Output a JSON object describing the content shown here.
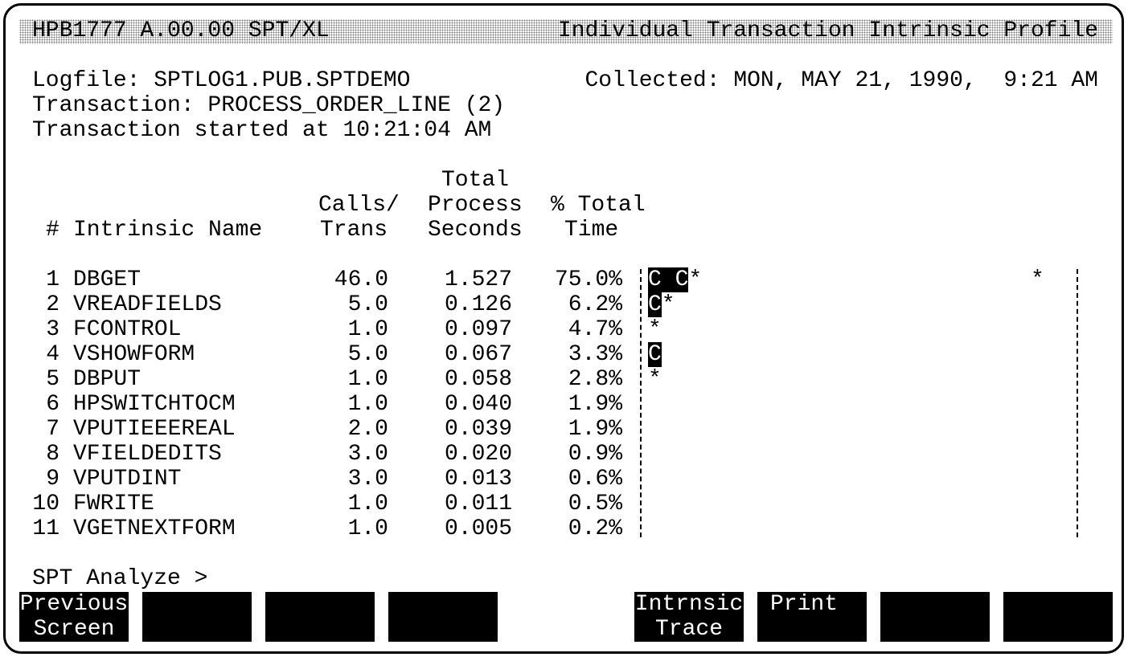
{
  "header": {
    "system": "HPB1777 A.00.00 SPT/XL",
    "title": "Individual Transaction Intrinsic Profile"
  },
  "info": {
    "logfile": "Logfile: SPTLOG1.PUB.SPTDEMO",
    "collected": "Collected: MON, MAY 21, 1990,  9:21 AM",
    "transaction": "Transaction: PROCESS_ORDER_LINE (2)",
    "started": "Transaction started at 10:21:04 AM"
  },
  "table": {
    "headers": {
      "number": "#",
      "name": "Intrinsic Name",
      "calls": [
        "Calls/",
        "Trans"
      ],
      "seconds": [
        "Total",
        "Process",
        "Seconds"
      ],
      "percent": [
        "% Total",
        "Time"
      ]
    },
    "rows": [
      [
        "1",
        "DBGET",
        "46.0",
        "1.527",
        "75.0%"
      ],
      [
        "2",
        "VREADFIELDS",
        "5.0",
        "0.126",
        "6.2%"
      ],
      [
        "3",
        "FCONTROL",
        "1.0",
        "0.097",
        "4.7%"
      ],
      [
        "4",
        "VSHOWFORM",
        "5.0",
        "0.067",
        "3.3%"
      ],
      [
        "5",
        "DBPUT",
        "1.0",
        "0.058",
        "2.8%"
      ],
      [
        "6",
        "HPSWITCHTOCM",
        "1.0",
        "0.040",
        "1.9%"
      ],
      [
        "7",
        "VPUTIEEEREAL",
        "2.0",
        "0.039",
        "1.9%"
      ],
      [
        "8",
        "VFIELDEDITS",
        "3.0",
        "0.020",
        "0.9%"
      ],
      [
        "9",
        "VPUTDINT",
        "3.0",
        "0.013",
        "0.6%"
      ],
      [
        "10",
        "FWRITE",
        "1.0",
        "0.011",
        "0.5%"
      ],
      [
        "11",
        "VGETNEXTFORM",
        "1.0",
        "0.005",
        "0.2%"
      ]
    ],
    "graph": [
      {
        "inverse": "C C",
        "plain": "*",
        "far": "*"
      },
      {
        "inverse": "C",
        "plain": "*"
      },
      {
        "plain": "*"
      },
      {
        "inverse": "C"
      },
      {
        "plain": "*"
      }
    ]
  },
  "prompt": "SPT Analyze >",
  "softkeys": [
    [
      "Previous",
      "Screen"
    ],
    [
      "Intrnsic",
      "Trace"
    ],
    [
      "Print"
    ]
  ]
}
